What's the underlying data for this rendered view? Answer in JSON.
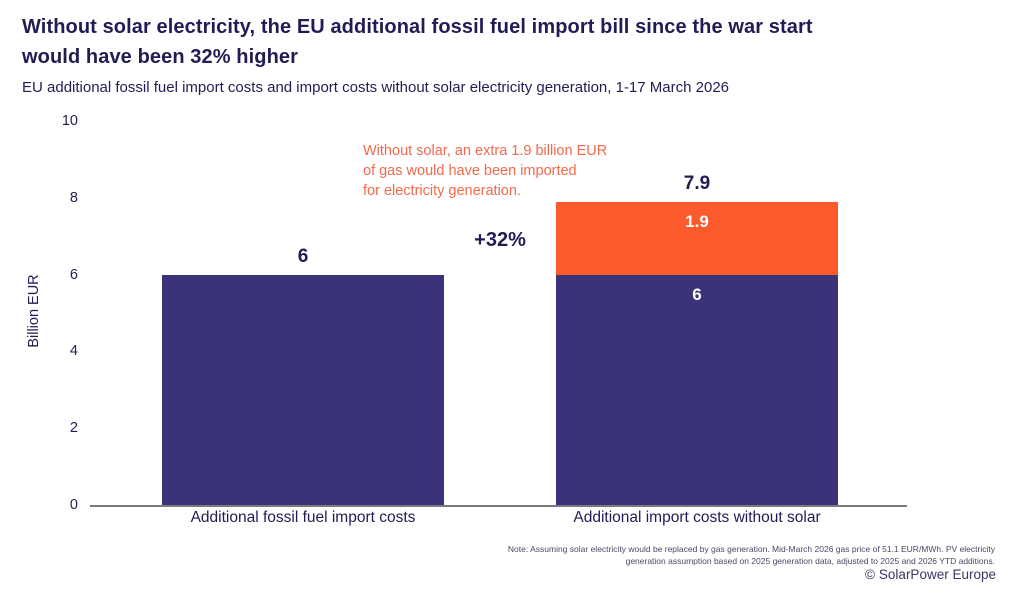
{
  "page": {
    "title_lines": [
      "Without solar electricity, the EU additional fossil fuel import bill since the war start",
      "would have been 32% higher"
    ],
    "subtitle": "EU additional fossil fuel import costs and import costs without solar electricity generation, 1-17 March 2026",
    "note_lines": [
      "Note: Assuming solar electricity would be replaced by gas generation. Mid-March 2026 gas price of 51.1 EUR/MWh. PV electricity",
      "generation assumption based on 2025 generation data, adjusted to 2025 and 2026 YTD additions."
    ],
    "footer": {
      "copyright_symbol": "©",
      "text": "SolarPower Europe"
    }
  },
  "chart_data": {
    "type": "bar",
    "stacked": true,
    "title": "Without solar electricity, the EU additional fossil fuel import bill since the war start would have been 32% higher",
    "subtitle": "EU additional fossil fuel import costs and import costs without solar electricity generation, 1-17 March 2026",
    "ylabel": "Billion EUR",
    "xlabel": "",
    "ylim": [
      0,
      10
    ],
    "yticks": [
      0,
      2,
      4,
      6,
      8,
      10
    ],
    "grid": false,
    "legend": "none",
    "categories": [
      "Additional fossil fuel import costs",
      "Additional import costs without solar"
    ],
    "series": [
      {
        "name": "Additional fossil fuel import costs",
        "color": "#3B337A",
        "values": [
          6,
          6
        ]
      },
      {
        "name": "Extra gas imported without solar",
        "color": "#FB5A2D",
        "values": [
          0,
          1.9
        ]
      }
    ],
    "bars": [
      {
        "category": "Additional fossil fuel import costs",
        "total": 6,
        "total_label": "6",
        "segments": [
          {
            "value": 6,
            "color": "#3B337A",
            "label": ""
          }
        ]
      },
      {
        "category": "Additional import costs without solar",
        "total": 7.9,
        "total_label": "7.9",
        "segments": [
          {
            "value": 6,
            "color": "#3B337A",
            "label": "6"
          },
          {
            "value": 1.9,
            "color": "#FB5A2D",
            "label": "1.9"
          }
        ]
      }
    ],
    "growth_label": "+32%",
    "annotation": {
      "lines": [
        "Without solar, an extra 1.9 billion EUR",
        "of gas would have been imported",
        "for electricity generation."
      ],
      "color": "#F4694A"
    },
    "colors": {
      "bar_navy": "#3B337A",
      "bar_orange": "#FB5A2D",
      "title_navy": "#211D54",
      "axis_line": "#7B7B7B"
    }
  }
}
